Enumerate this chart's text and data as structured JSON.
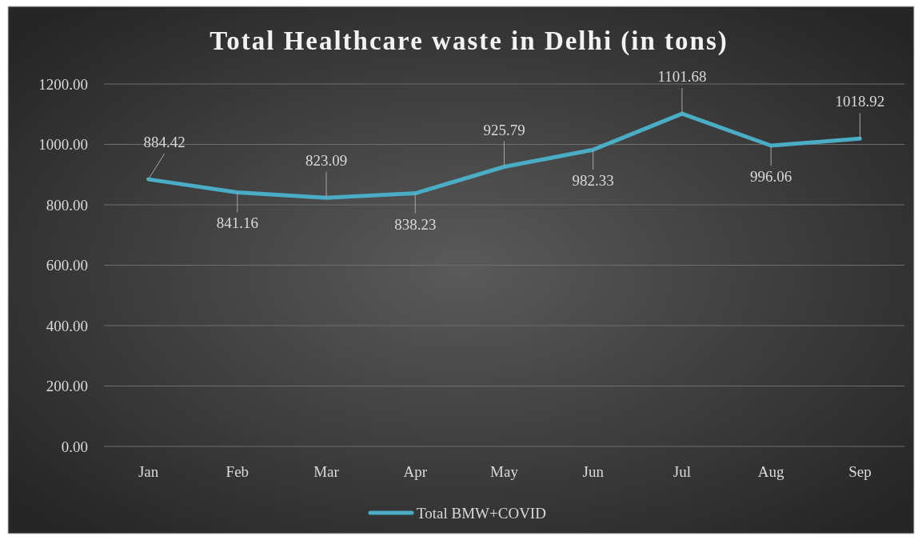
{
  "chart_data": {
    "type": "line",
    "title": "Total Healthcare waste in Delhi (in tons)",
    "categories": [
      "Jan",
      "Feb",
      "Mar",
      "Apr",
      "May",
      "Jun",
      "Jul",
      "Aug",
      "Sep"
    ],
    "series": [
      {
        "name": "Total BMW+COVID",
        "color": "#4bacc6",
        "values": [
          884.42,
          841.16,
          823.09,
          838.23,
          925.79,
          982.33,
          1101.68,
          996.06,
          1018.92
        ]
      }
    ],
    "ylim": [
      0,
      1200
    ],
    "yticks": [
      {
        "value": 0,
        "label": "0.00"
      },
      {
        "value": 200,
        "label": "200.00"
      },
      {
        "value": 400,
        "label": "400.00"
      },
      {
        "value": 600,
        "label": "600.00"
      },
      {
        "value": 800,
        "label": "800.00"
      },
      {
        "value": 1000,
        "label": "1000.00"
      },
      {
        "value": 1200,
        "label": "1200.00"
      }
    ],
    "grid": "y",
    "legend": "bottom",
    "data_labels": true,
    "marker": "none",
    "line_style": "solid"
  }
}
